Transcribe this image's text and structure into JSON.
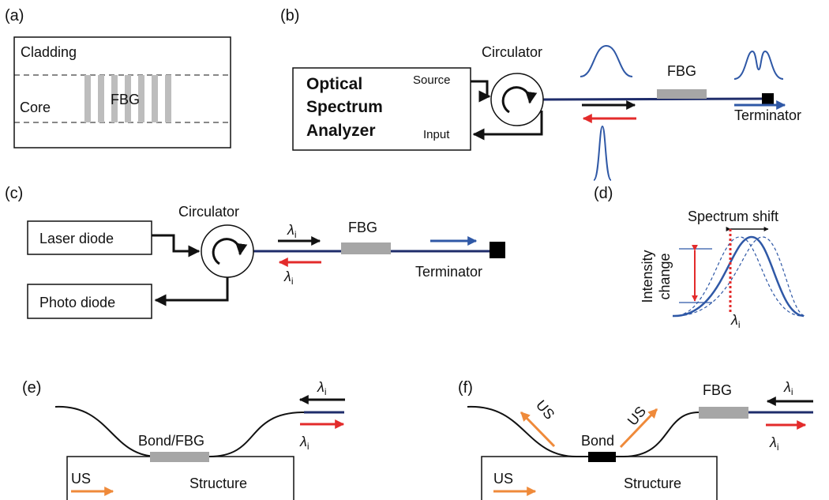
{
  "panel_a": {
    "label": "(a)",
    "cladding": "Cladding",
    "core": "Core",
    "grating": "FBG"
  },
  "panel_b": {
    "label": "(b)",
    "analyzer": [
      "Optical",
      "Spectrum",
      "Analyzer"
    ],
    "source": "Source",
    "input": "Input",
    "circulator": "Circulator",
    "grating": "FBG",
    "terminator": "Terminator"
  },
  "panel_c": {
    "label": "(c)",
    "laser": "Laser diode",
    "photo": "Photo diode",
    "circulator": "Circulator",
    "grating": "FBG",
    "terminator": "Terminator",
    "forward_wavelength": {
      "symbol": "λ",
      "subscript": "i"
    },
    "reflected_wavelength": {
      "symbol": "λ",
      "subscript": "i"
    }
  },
  "panel_d": {
    "label": "(d)",
    "shift": "Spectrum shift",
    "intensity": [
      "Intensity",
      "change"
    ],
    "wavelength": {
      "symbol": "λ",
      "subscript": "i"
    }
  },
  "panel_e": {
    "label": "(e)",
    "bond": "Bond/FBG",
    "wave": "US",
    "structure": "Structure",
    "incoming_wavelength": {
      "symbol": "λ",
      "subscript": "i"
    },
    "reflected_wavelength": {
      "symbol": "λ",
      "subscript": "i"
    }
  },
  "panel_f": {
    "label": "(f)",
    "grating": "FBG",
    "bond": "Bond",
    "wave_left": "US",
    "wave_right": "US",
    "wave": "US",
    "structure": "Structure",
    "incoming_wavelength": {
      "symbol": "λ",
      "subscript": "i"
    },
    "reflected_wavelength": {
      "symbol": "λ",
      "subscript": "i"
    }
  }
}
